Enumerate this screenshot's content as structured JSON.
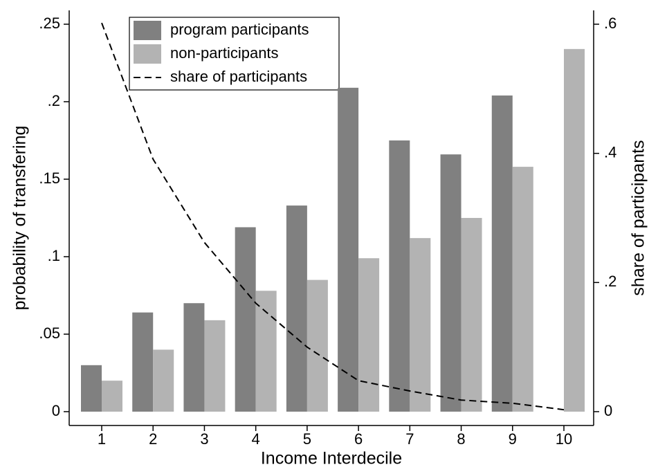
{
  "chart_data": {
    "type": "bar",
    "xlabel": "Income Interdecile",
    "ylabel": "probability of transfering",
    "y2label": "share of participants",
    "categories": [
      "1",
      "2",
      "3",
      "4",
      "5",
      "6",
      "7",
      "8",
      "9",
      "10"
    ],
    "series": [
      {
        "name": "program participants",
        "color": "#808080",
        "type": "bar",
        "values": [
          0.03,
          0.064,
          0.07,
          0.119,
          0.133,
          0.209,
          0.175,
          0.166,
          0.204,
          null
        ]
      },
      {
        "name": "non-participants",
        "color": "#b3b3b3",
        "type": "bar",
        "values": [
          0.02,
          0.04,
          0.059,
          0.078,
          0.085,
          0.099,
          0.112,
          0.125,
          0.158,
          0.234
        ]
      },
      {
        "name": "share of participants",
        "color": "#000000",
        "type": "line",
        "axis": "y2",
        "values": [
          0.602,
          0.391,
          0.262,
          0.168,
          0.1,
          0.048,
          0.032,
          0.018,
          0.013,
          0.003
        ]
      }
    ],
    "ylim": [
      0,
      0.25
    ],
    "yticks": [
      0,
      {
        "value": 0.05,
        "label": ".05"
      },
      {
        "value": 0.1,
        "label": ".1"
      },
      {
        "value": 0.15,
        "label": ".15"
      },
      {
        "value": 0.2,
        "label": ".2"
      },
      {
        "value": 0.25,
        "label": ".25"
      }
    ],
    "y2lim": [
      0,
      0.6
    ],
    "y2ticks": [
      0,
      {
        "value": 0.2,
        "label": ".2"
      },
      {
        "value": 0.4,
        "label": ".4"
      },
      {
        "value": 0.6,
        "label": ".6"
      }
    ],
    "grid": false,
    "legend": "top-left"
  }
}
